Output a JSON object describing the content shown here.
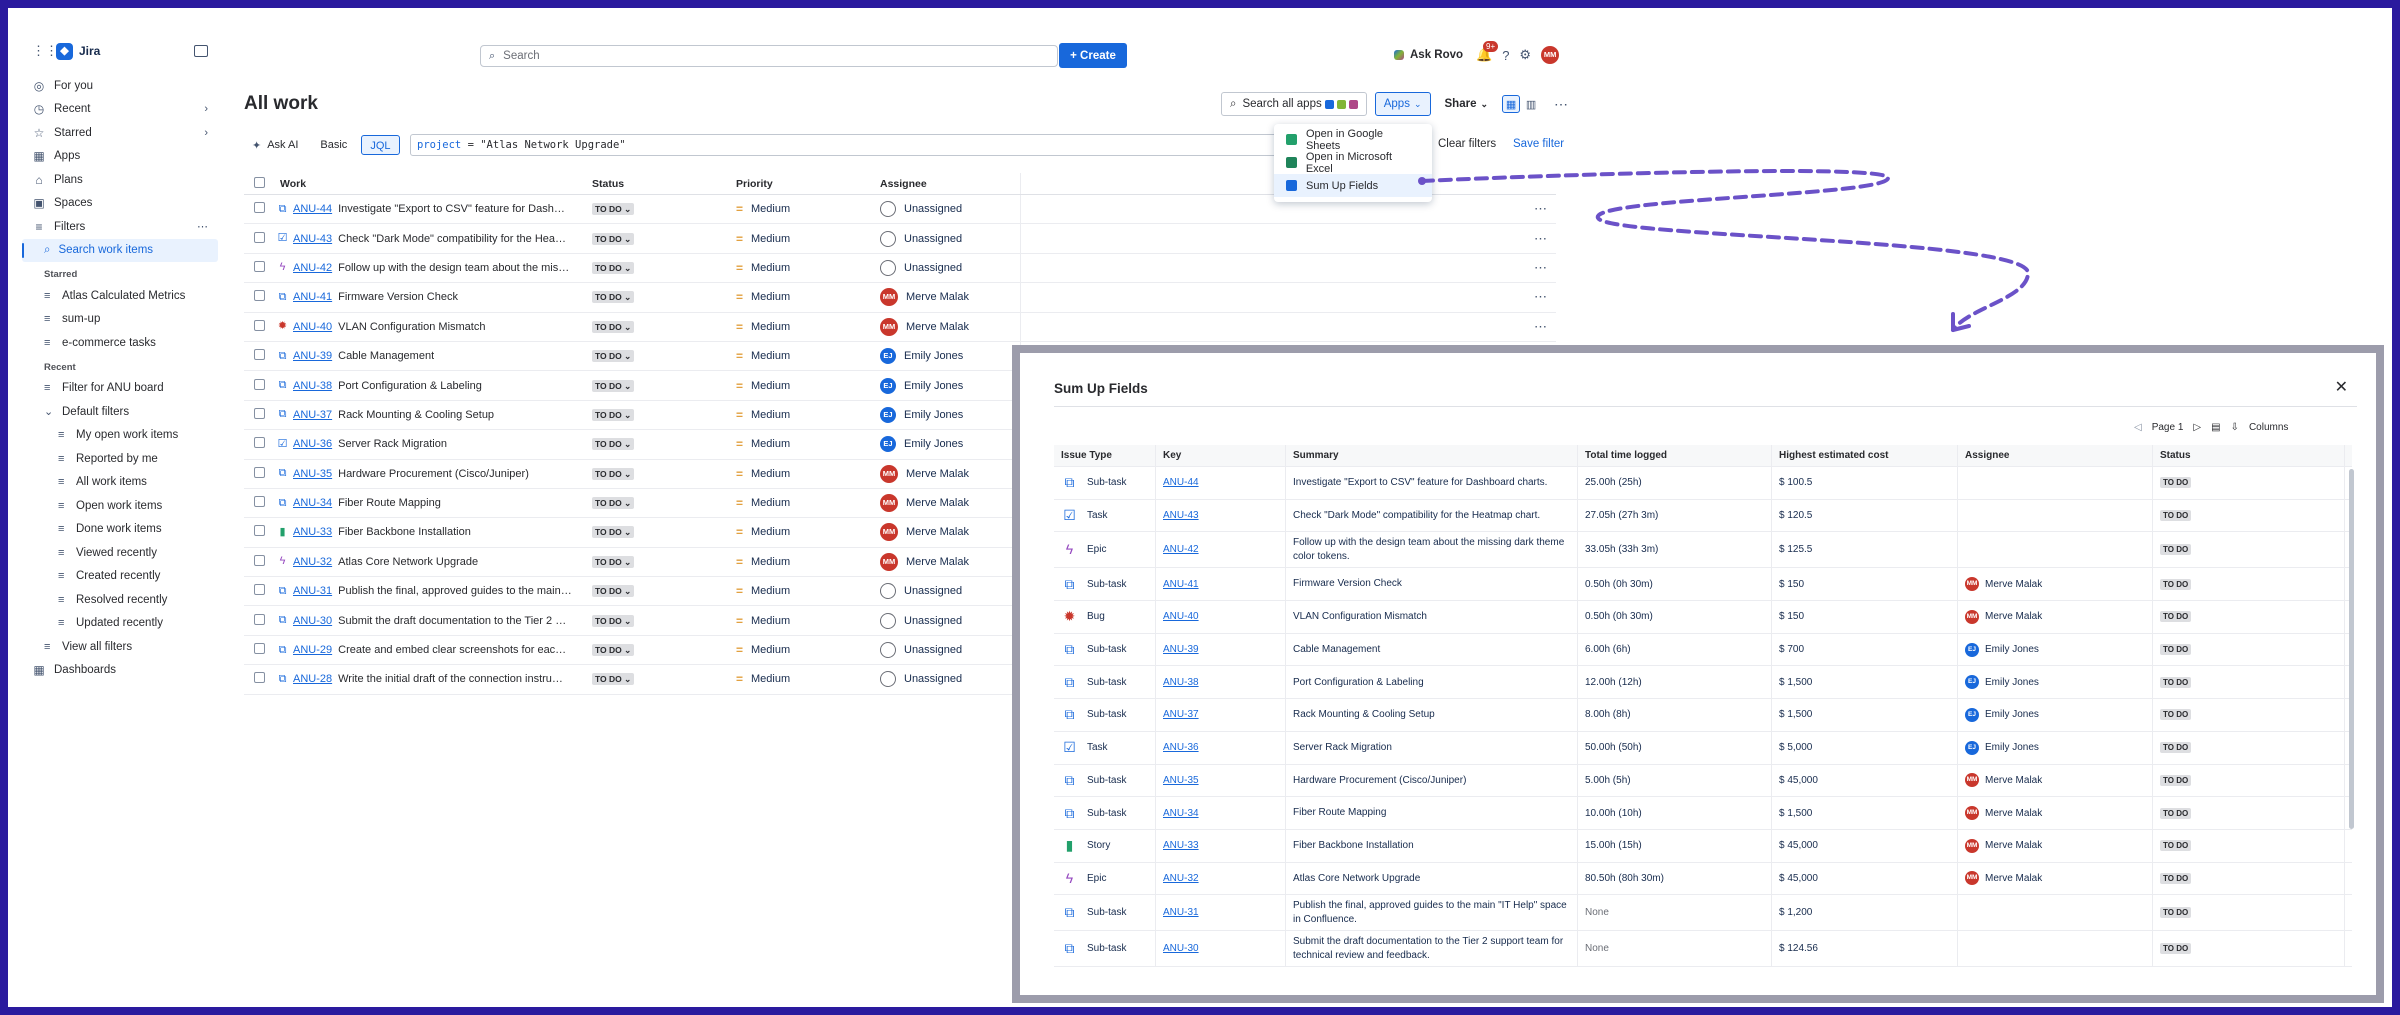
{
  "app": {
    "name": "Jira"
  },
  "sidebar": {
    "items": [
      {
        "label": "For you",
        "icon": "user-circle-icon"
      },
      {
        "label": "Recent",
        "icon": "clock-icon",
        "chevron": true
      },
      {
        "label": "Starred",
        "icon": "star-icon",
        "chevron": true
      },
      {
        "label": "Apps",
        "icon": "apps-icon"
      },
      {
        "label": "Plans",
        "icon": "plans-icon"
      },
      {
        "label": "Spaces",
        "icon": "spaces-icon"
      },
      {
        "label": "Filters",
        "icon": "filter-icon",
        "more": "⋯"
      }
    ],
    "search_work_items": "Search work items",
    "starred_heading": "Starred",
    "starred": [
      "Atlas Calculated Metrics",
      "sum-up",
      "e-commerce tasks"
    ],
    "recent_heading": "Recent",
    "recent": [
      "Filter for ANU board"
    ],
    "default_filters": "Default filters",
    "defaults": [
      "My open work items",
      "Reported by me",
      "All work items",
      "Open work items",
      "Done work items",
      "Viewed recently",
      "Created recently",
      "Resolved recently",
      "Updated recently"
    ],
    "view_all": "View all filters",
    "dashboards": "Dashboards"
  },
  "topbar": {
    "search_placeholder": "Search",
    "create_label": "+ Create",
    "rovo_label": "Ask Rovo",
    "notif_badge": "9+",
    "user_initials": "MM"
  },
  "page": {
    "title": "All work",
    "search_all_apps": "Search all apps",
    "apps_label": "Apps",
    "share_label": "Share",
    "ask_ai": "Ask AI",
    "basic": "Basic",
    "jql": "JQL",
    "jql_keyword": "project",
    "jql_rest": " = \"Atlas Network Upgrade\"",
    "clear_filters": "Clear filters",
    "save_filter": "Save filter"
  },
  "apps_menu": {
    "items": [
      "Open in Google Sheets",
      "Open in Microsoft Excel",
      "Sum Up Fields"
    ],
    "colors": [
      "#22a06b",
      "#1f845a",
      "#1868db"
    ]
  },
  "table": {
    "headers": [
      "Work",
      "Status",
      "Priority",
      "Assignee"
    ],
    "rows": [
      {
        "type": "subtask",
        "key": "ANU-44",
        "summary": "Investigate \"Export to CSV\" feature for Dash…",
        "status": "TO DO",
        "priority": "Medium",
        "assignee": "Unassigned"
      },
      {
        "type": "task",
        "key": "ANU-43",
        "summary": "Check \"Dark Mode\" compatibility for the Hea…",
        "status": "TO DO",
        "priority": "Medium",
        "assignee": "Unassigned"
      },
      {
        "type": "epic",
        "key": "ANU-42",
        "summary": "Follow up with the design team about the mis…",
        "status": "TO DO",
        "priority": "Medium",
        "assignee": "Unassigned"
      },
      {
        "type": "subtask",
        "key": "ANU-41",
        "summary": "Firmware Version Check",
        "status": "TO DO",
        "priority": "Medium",
        "assignee": "Merve Malak"
      },
      {
        "type": "bug",
        "key": "ANU-40",
        "summary": "VLAN Configuration Mismatch",
        "status": "TO DO",
        "priority": "Medium",
        "assignee": "Merve Malak"
      },
      {
        "type": "subtask",
        "key": "ANU-39",
        "summary": "Cable Management",
        "status": "TO DO",
        "priority": "Medium",
        "assignee": "Emily Jones"
      },
      {
        "type": "subtask",
        "key": "ANU-38",
        "summary": "Port Configuration & Labeling",
        "status": "TO DO",
        "priority": "Medium",
        "assignee": "Emily Jones"
      },
      {
        "type": "subtask",
        "key": "ANU-37",
        "summary": "Rack Mounting & Cooling Setup",
        "status": "TO DO",
        "priority": "Medium",
        "assignee": "Emily Jones"
      },
      {
        "type": "task",
        "key": "ANU-36",
        "summary": "Server Rack Migration",
        "status": "TO DO",
        "priority": "Medium",
        "assignee": "Emily Jones"
      },
      {
        "type": "subtask",
        "key": "ANU-35",
        "summary": "Hardware Procurement (Cisco/Juniper)",
        "status": "TO DO",
        "priority": "Medium",
        "assignee": "Merve Malak"
      },
      {
        "type": "subtask",
        "key": "ANU-34",
        "summary": "Fiber Route Mapping",
        "status": "TO DO",
        "priority": "Medium",
        "assignee": "Merve Malak"
      },
      {
        "type": "story",
        "key": "ANU-33",
        "summary": "Fiber Backbone Installation",
        "status": "TO DO",
        "priority": "Medium",
        "assignee": "Merve Malak"
      },
      {
        "type": "epic",
        "key": "ANU-32",
        "summary": "Atlas Core Network Upgrade",
        "status": "TO DO",
        "priority": "Medium",
        "assignee": "Merve Malak"
      },
      {
        "type": "subtask",
        "key": "ANU-31",
        "summary": "Publish the final, approved guides to the main…",
        "status": "TO DO",
        "priority": "Medium",
        "assignee": "Unassigned"
      },
      {
        "type": "subtask",
        "key": "ANU-30",
        "summary": "Submit the draft documentation to the Tier 2 …",
        "status": "TO DO",
        "priority": "Medium",
        "assignee": "Unassigned"
      },
      {
        "type": "subtask",
        "key": "ANU-29",
        "summary": "Create and embed clear screenshots for eac…",
        "status": "TO DO",
        "priority": "Medium",
        "assignee": "Unassigned"
      },
      {
        "type": "subtask",
        "key": "ANU-28",
        "summary": "Write the initial draft of the connection instru…",
        "status": "TO DO",
        "priority": "Medium",
        "assignee": "Unassigned"
      }
    ]
  },
  "modal": {
    "title": "Sum Up Fields",
    "page_label": "Page 1",
    "columns_label": "Columns",
    "headers": [
      "Issue Type",
      "Key",
      "Summary",
      "Total time logged",
      "Highest estimated cost",
      "Assignee",
      "Status"
    ],
    "rows": [
      {
        "type": "Sub-task",
        "key": "ANU-44",
        "summary": "Investigate \"Export to CSV\" feature for Dashboard charts.",
        "time": "25.00h (25h)",
        "cost": "$ 100.5",
        "assignee": "",
        "status": "TO DO"
      },
      {
        "type": "Task",
        "key": "ANU-43",
        "summary": "Check \"Dark Mode\" compatibility for the Heatmap chart.",
        "time": "27.05h (27h 3m)",
        "cost": "$ 120.5",
        "assignee": "",
        "status": "TO DO"
      },
      {
        "type": "Epic",
        "key": "ANU-42",
        "summary": "Follow up with the design team about the missing dark theme color tokens.",
        "time": "33.05h (33h 3m)",
        "cost": "$ 125.5",
        "assignee": "",
        "status": "TO DO"
      },
      {
        "type": "Sub-task",
        "key": "ANU-41",
        "summary": "Firmware Version Check",
        "time": "0.50h (0h 30m)",
        "cost": "$ 150",
        "assignee": "Merve Malak",
        "status": "TO DO"
      },
      {
        "type": "Bug",
        "key": "ANU-40",
        "summary": "VLAN Configuration Mismatch",
        "time": "0.50h (0h 30m)",
        "cost": "$ 150",
        "assignee": "Merve Malak",
        "status": "TO DO"
      },
      {
        "type": "Sub-task",
        "key": "ANU-39",
        "summary": "Cable Management",
        "time": "6.00h (6h)",
        "cost": "$ 700",
        "assignee": "Emily Jones",
        "status": "TO DO"
      },
      {
        "type": "Sub-task",
        "key": "ANU-38",
        "summary": "Port Configuration & Labeling",
        "time": "12.00h (12h)",
        "cost": "$ 1,500",
        "assignee": "Emily Jones",
        "status": "TO DO"
      },
      {
        "type": "Sub-task",
        "key": "ANU-37",
        "summary": "Rack Mounting & Cooling Setup",
        "time": "8.00h (8h)",
        "cost": "$ 1,500",
        "assignee": "Emily Jones",
        "status": "TO DO"
      },
      {
        "type": "Task",
        "key": "ANU-36",
        "summary": "Server Rack Migration",
        "time": "50.00h (50h)",
        "cost": "$ 5,000",
        "assignee": "Emily Jones",
        "status": "TO DO"
      },
      {
        "type": "Sub-task",
        "key": "ANU-35",
        "summary": "Hardware Procurement (Cisco/Juniper)",
        "time": "5.00h (5h)",
        "cost": "$ 45,000",
        "assignee": "Merve Malak",
        "status": "TO DO"
      },
      {
        "type": "Sub-task",
        "key": "ANU-34",
        "summary": "Fiber Route Mapping",
        "time": "10.00h (10h)",
        "cost": "$ 1,500",
        "assignee": "Merve Malak",
        "status": "TO DO"
      },
      {
        "type": "Story",
        "key": "ANU-33",
        "summary": "Fiber Backbone Installation",
        "time": "15.00h (15h)",
        "cost": "$ 45,000",
        "assignee": "Merve Malak",
        "status": "TO DO"
      },
      {
        "type": "Epic",
        "key": "ANU-32",
        "summary": "Atlas Core Network Upgrade",
        "time": "80.50h (80h 30m)",
        "cost": "$ 45,000",
        "assignee": "Merve Malak",
        "status": "TO DO"
      },
      {
        "type": "Sub-task",
        "key": "ANU-31",
        "summary": "Publish the final, approved guides to the main \"IT Help\" space in Confluence.",
        "time": "None",
        "cost": "$ 1,200",
        "assignee": "",
        "status": "TO DO"
      },
      {
        "type": "Sub-task",
        "key": "ANU-30",
        "summary": "Submit the draft documentation to the Tier 2 support team for technical review and feedback.",
        "time": "None",
        "cost": "$ 124.56",
        "assignee": "",
        "status": "TO DO"
      }
    ]
  },
  "colors": {
    "accent": "#1868db",
    "frame": "#2a1a9e",
    "arrow": "#6b52c8",
    "avatar_mm": "#c9372c"
  }
}
